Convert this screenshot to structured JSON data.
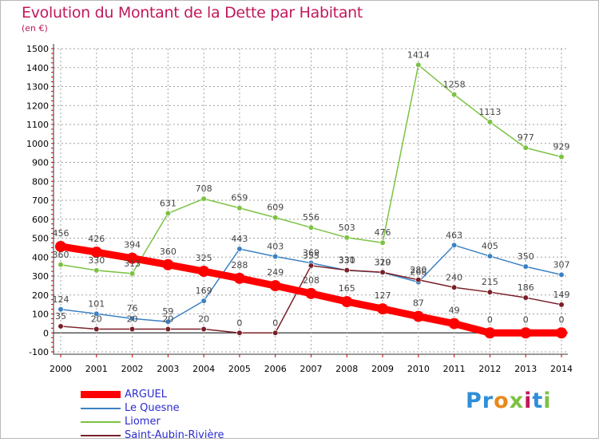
{
  "colors": {
    "title": "#c2185b",
    "grid": "#a0a0a0",
    "zero_line": "#555555",
    "axis_text": "#000000",
    "label_text": "#444444",
    "legend_text": "#2b2bd0",
    "axis_ticks": "#cc0000"
  },
  "brand": {
    "name": "Proxiti",
    "letters": [
      {
        "ch": "P",
        "color": "#2f8ed8"
      },
      {
        "ch": "r",
        "color": "#2f8ed8"
      },
      {
        "ch": "o",
        "color": "#e8891c"
      },
      {
        "ch": "x",
        "color": "#7cc243"
      },
      {
        "ch": "i",
        "color": "#c2185b"
      },
      {
        "ch": "t",
        "color": "#2f8ed8"
      },
      {
        "ch": "i",
        "color": "#7cc243"
      }
    ]
  },
  "chart_data": {
    "type": "line",
    "title": "Evolution du Montant de la Dette par Habitant",
    "subtitle": "(en €)",
    "xlabel": "",
    "ylabel": "",
    "ylim": [
      -100,
      1500
    ],
    "yticks": [
      -100,
      0,
      100,
      200,
      300,
      400,
      500,
      600,
      700,
      800,
      900,
      1000,
      1100,
      1200,
      1300,
      1400,
      1500
    ],
    "grid": true,
    "legend_position": "bottom-left",
    "x": [
      "2000",
      "2001",
      "2002",
      "2003",
      "2004",
      "2005",
      "2006",
      "2007",
      "2008",
      "2009",
      "2010",
      "2011",
      "2012",
      "2013",
      "2014"
    ],
    "series": [
      {
        "name": "ARGUEL",
        "color": "#ff0000",
        "emphasis": true,
        "values": [
          456,
          426,
          394,
          360,
          325,
          288,
          249,
          208,
          165,
          127,
          87,
          49,
          0,
          0,
          0
        ]
      },
      {
        "name": "Le Quesne",
        "color": "#3b82c4",
        "values": [
          124,
          101,
          76,
          59,
          169,
          443,
          403,
          369,
          330,
          319,
          268,
          463,
          405,
          350,
          307
        ]
      },
      {
        "name": "Liomer",
        "color": "#7cc243",
        "values": [
          360,
          330,
          313,
          631,
          708,
          659,
          609,
          556,
          503,
          476,
          1414,
          1258,
          1113,
          977,
          929
        ]
      },
      {
        "name": "Saint-Aubin-Rivière",
        "color": "#7a1f28",
        "values": [
          35,
          20,
          20,
          20,
          20,
          0,
          0,
          355,
          331,
          320,
          280,
          240,
          215,
          186,
          149
        ]
      }
    ]
  }
}
